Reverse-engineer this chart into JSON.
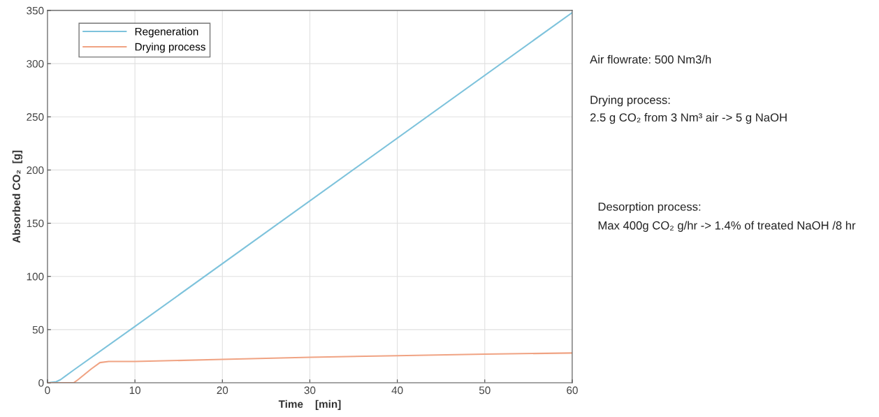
{
  "chart_data": {
    "type": "line",
    "xlabel": "Time    [min]",
    "ylabel": "Absorbed CO₂  [g]",
    "xlim": [
      0,
      60
    ],
    "xticks": [
      0,
      10,
      20,
      30,
      40,
      50,
      60
    ],
    "ylim": [
      0,
      350
    ],
    "yticks": [
      0,
      50,
      100,
      150,
      200,
      250,
      300,
      350
    ],
    "grid": true,
    "legend": "top left",
    "series": [
      {
        "name": "Regeneration",
        "color": "#7ec3dc",
        "x": [
          0,
          1,
          1.5,
          2,
          3,
          10,
          60
        ],
        "values": [
          0,
          1,
          3,
          6,
          12,
          53,
          348
        ]
      },
      {
        "name": "Drying process",
        "color": "#f0a383",
        "x": [
          0,
          3,
          3.5,
          5,
          6,
          7,
          10,
          20,
          30,
          40,
          50,
          60
        ],
        "values": [
          0,
          0,
          3,
          13,
          19,
          20,
          20,
          22,
          24,
          25.5,
          27,
          28
        ]
      }
    ],
    "annotations": [
      "Air flowrate: 500 Nm3/h",
      "Drying process:",
      "2.5 g CO₂ from 3 Nm³ air -> 5 g NaOH",
      "Desorption process:",
      "Max 400g CO₂ g/hr -> 1.4% of treated NaOH /8 hr"
    ]
  }
}
